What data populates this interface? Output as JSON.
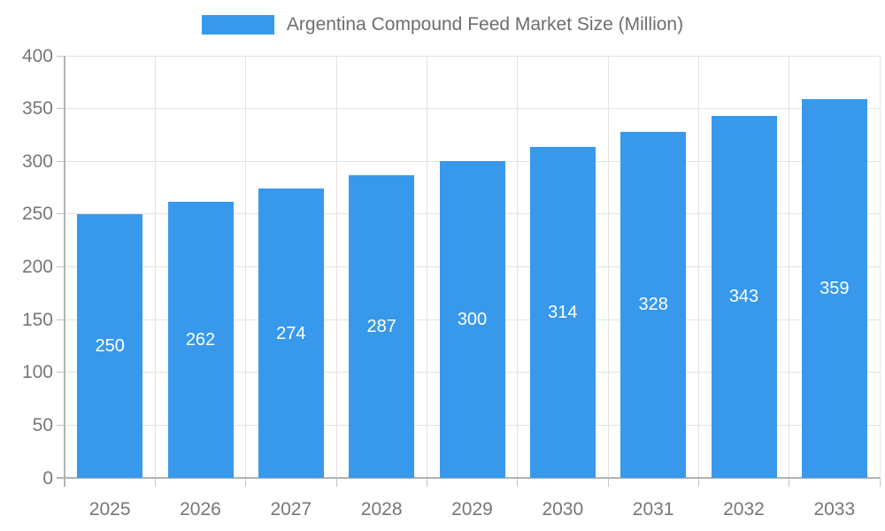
{
  "legend": {
    "swatch_color": "#3899EC",
    "label": "Argentina Compound Feed Market Size (Million)"
  },
  "chart_data": {
    "type": "bar",
    "title": "Argentina Compound Feed Market Size (Million)",
    "categories": [
      "2025",
      "2026",
      "2027",
      "2028",
      "2029",
      "2030",
      "2031",
      "2032",
      "2033"
    ],
    "values": [
      250,
      262,
      274,
      287,
      300,
      314,
      328,
      343,
      359
    ],
    "xlabel": "",
    "ylabel": "",
    "ylim": [
      0,
      400
    ],
    "yticks": [
      0,
      50,
      100,
      150,
      200,
      250,
      300,
      350,
      400
    ],
    "grid": true,
    "legend_position": "top",
    "bar_color": "#3899EC",
    "value_label_color": "#ffffff",
    "axis_label_color": "#777777",
    "grid_color": "#e3e3e3",
    "axis_line_color": "#b3b3b3",
    "tick_color": "#c4c4c4"
  }
}
